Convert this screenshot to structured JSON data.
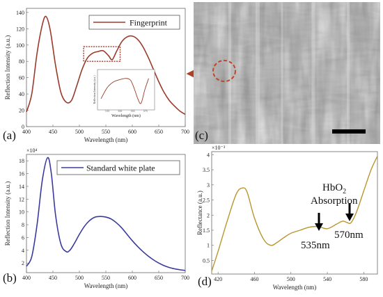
{
  "chart_data": [
    {
      "panel": "(a)",
      "type": "line",
      "xlabel": "Wavelength (nm)",
      "ylabel": "Reflection Intensity (a.u.)",
      "xlim": [
        400,
        700
      ],
      "ylim": [
        0,
        145
      ],
      "xticks": [
        "400",
        "450",
        "500",
        "550",
        "600",
        "650",
        "700"
      ],
      "yticks": [
        "0",
        "20",
        "40",
        "60",
        "80",
        "100",
        "120",
        "140"
      ],
      "series": [
        {
          "name": "Fingerprint",
          "color": "#9b3a2a",
          "x": [
            400,
            410,
            420,
            430,
            437,
            445,
            455,
            465,
            475,
            485,
            495,
            505,
            515,
            525,
            535,
            545,
            555,
            562,
            570,
            580,
            590,
            600,
            610,
            620,
            630,
            640,
            650,
            660,
            670,
            680,
            690,
            700
          ],
          "y": [
            18,
            40,
            90,
            125,
            135,
            118,
            75,
            42,
            30,
            32,
            50,
            70,
            84,
            90,
            92,
            93,
            87,
            82,
            92,
            104,
            110,
            111,
            107,
            98,
            85,
            70,
            55,
            42,
            32,
            25,
            19,
            15
          ]
        }
      ],
      "inset": {
        "xlabel": "Wavelength (nm)",
        "ylabel": "Reflection Intensity (a.u.)",
        "xticks": [
          "515",
          "535",
          "555",
          "575"
        ],
        "xlim": [
          505,
          585
        ],
        "ylim": [
          80,
          96
        ],
        "x": [
          505,
          515,
          525,
          535,
          545,
          552,
          558,
          563,
          568,
          574,
          580
        ],
        "y": [
          84,
          89,
          91.5,
          92.5,
          93,
          92,
          88,
          84,
          82,
          88,
          93
        ]
      },
      "highlight_box_x": [
        508,
        577
      ],
      "legend_position": "top-right"
    },
    {
      "panel": "(b)",
      "type": "line",
      "xlabel": "Wavelength (nm)",
      "ylabel": "Reflection Intensity (a.u.)",
      "multiplier": "×10⁴",
      "xlim": [
        400,
        700
      ],
      "ylim": [
        0.5,
        19
      ],
      "xticks": [
        "400",
        "450",
        "500",
        "550",
        "600",
        "650",
        "700"
      ],
      "yticks": [
        "2",
        "4",
        "6",
        "8",
        "10",
        "12",
        "14",
        "16",
        "18"
      ],
      "series": [
        {
          "name": "Standard white plate",
          "color": "#3a3a9e",
          "x": [
            400,
            410,
            420,
            430,
            440,
            447,
            455,
            465,
            475,
            482,
            490,
            500,
            510,
            520,
            530,
            540,
            550,
            560,
            570,
            580,
            590,
            600,
            610,
            620,
            630,
            640,
            650,
            660,
            670,
            680,
            690,
            700
          ],
          "y": [
            1.5,
            3,
            8,
            15,
            18.5,
            16,
            9.5,
            5,
            3.8,
            4,
            5,
            6.5,
            7.8,
            8.7,
            9.2,
            9.3,
            9.2,
            8.9,
            8.3,
            7.5,
            6.5,
            5.5,
            4.6,
            3.8,
            3.1,
            2.5,
            2.0,
            1.6,
            1.3,
            1.1,
            0.95,
            0.85
          ]
        }
      ],
      "legend_position": "top-right"
    },
    {
      "panel": "(d)",
      "type": "line",
      "xlabel": "Wavelength (nm)",
      "ylabel": "Reflectance (a.u.)",
      "multiplier": "×10⁻³",
      "xlim": [
        413,
        595
      ],
      "ylim": [
        0.05,
        4.1
      ],
      "xticks": [
        "420",
        "460",
        "500",
        "540",
        "580"
      ],
      "yticks": [
        "0.5",
        "1",
        "1.5",
        "2",
        "2.5",
        "3",
        "3.5",
        "4"
      ],
      "series": [
        {
          "color": "#b8962e",
          "x": [
            413,
            420,
            430,
            440,
            447,
            452,
            460,
            470,
            478,
            485,
            492,
            500,
            510,
            520,
            530,
            540,
            550,
            557,
            562,
            566,
            572,
            580,
            588,
            595
          ],
          "y": [
            0.15,
            0.8,
            1.8,
            2.7,
            2.9,
            2.75,
            1.9,
            1.2,
            1.0,
            1.1,
            1.25,
            1.4,
            1.5,
            1.6,
            1.62,
            1.55,
            1.7,
            1.8,
            1.75,
            1.75,
            2.1,
            2.8,
            3.5,
            3.95
          ]
        }
      ],
      "annotations": {
        "title_line1": "HbO",
        "title_sub": "2",
        "title_line2": "Absorption",
        "peak1": "535nm",
        "peak2": "570nm"
      }
    }
  ],
  "panels": {
    "a": "(a)",
    "b": "(b)",
    "c": "(c)",
    "d": "(d)"
  }
}
